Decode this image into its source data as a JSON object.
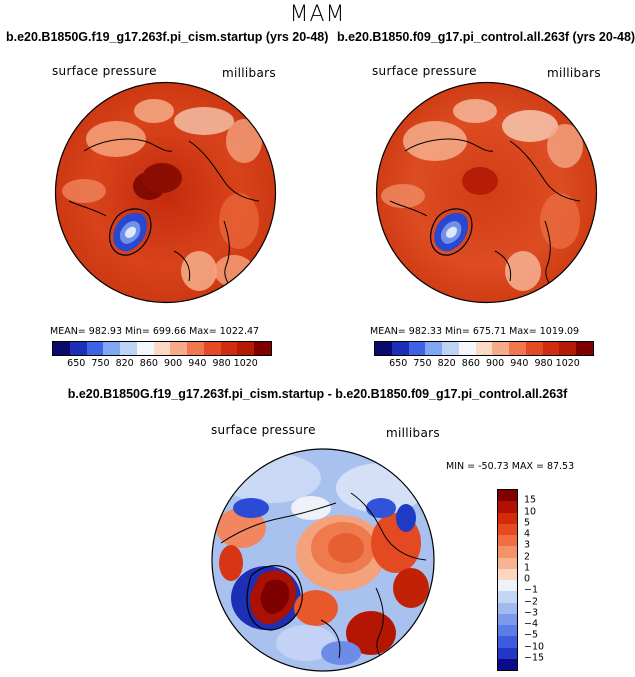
{
  "figure": {
    "season": "MAM",
    "panel_left": {
      "title": "b.e20.B1850G.f19_g17.263f.pi_cism.startup (yrs 20-48)",
      "variable": "surface pressure",
      "units": "millibars",
      "stats": "MEAN= 982.93   Min= 699.66   Max= 1022.47"
    },
    "panel_right": {
      "title": "b.e20.B1850.f09_g17.pi_control.all.263f (yrs 20-48)",
      "variable": "surface pressure",
      "units": "millibars",
      "stats": "MEAN= 982.33   Min= 675.71   Max= 1019.09"
    },
    "panel_diff": {
      "title": "b.e20.B1850G.f19_g17.263f.pi_cism.startup - b.e20.B1850.f09_g17.pi_control.all.263f",
      "variable": "surface pressure",
      "units": "millibars",
      "stats": "MIN = -50.73  MAX =  87.53"
    },
    "colorbar_main": {
      "ticks": [
        "650",
        "750",
        "820",
        "860",
        "900",
        "940",
        "980",
        "1020"
      ],
      "colors": [
        "#0a0a6e",
        "#1d2fb8",
        "#3c62e6",
        "#7fa7f2",
        "#bcd3f6",
        "#f4f6fb",
        "#fbd9c5",
        "#f7ab89",
        "#f0784f",
        "#e34a26",
        "#cf2c10",
        "#b51a05",
        "#800000"
      ]
    },
    "colorbar_diff": {
      "ticks": [
        "15",
        "10",
        "5",
        "4",
        "3",
        "2",
        "1",
        "0",
        "−1",
        "−2",
        "−3",
        "−4",
        "−5",
        "−10",
        "−15"
      ],
      "colors": [
        "#800000",
        "#b31004",
        "#d42a08",
        "#e74a1f",
        "#ef6e42",
        "#f49368",
        "#f8b492",
        "#fbd6c0",
        "#eef1f8",
        "#c5d6f5",
        "#a0baf0",
        "#7b9bea",
        "#5b7ee6",
        "#3c5ce0",
        "#2236c8",
        "#0a0a8a"
      ]
    }
  }
}
